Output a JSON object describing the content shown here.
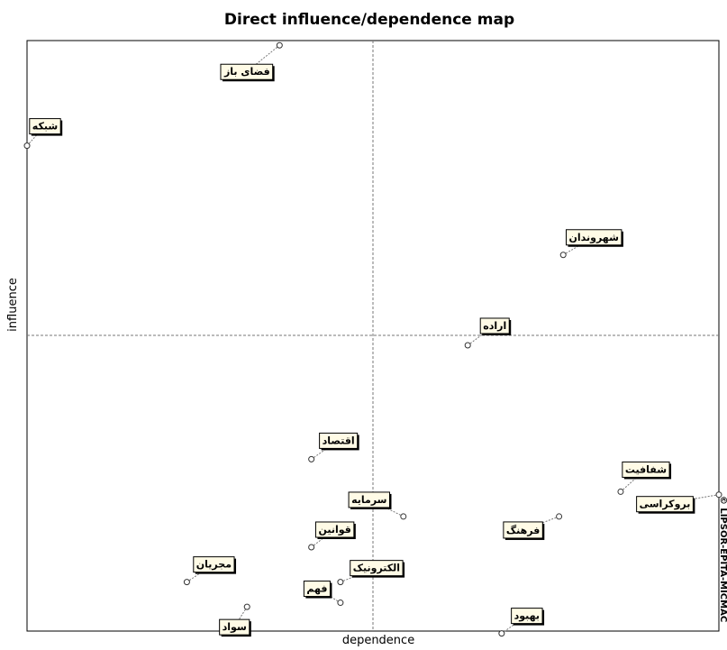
{
  "chart_data": {
    "type": "scatter",
    "title": "Direct influence/dependence map",
    "xlabel": "dependence",
    "ylabel": "influence",
    "watermark": "© LIPSOR-EPITA-MICMAC",
    "grid": false,
    "quadrant_lines": "dashed",
    "colors": {
      "axis": "#000000",
      "divider": "#777777",
      "label_fill": "#fffbe6",
      "label_shadow": "#000000",
      "point": "#ffffff",
      "leader": "#777777"
    },
    "points": [
      {
        "label": "فضای باز",
        "x": 0.365,
        "y": 0.992
      },
      {
        "label": "شبکه",
        "x": 0.0,
        "y": 0.822
      },
      {
        "label": "شهروندان",
        "x": 0.775,
        "y": 0.637
      },
      {
        "label": "اراده",
        "x": 0.637,
        "y": 0.484
      },
      {
        "label": "اقتصاد",
        "x": 0.411,
        "y": 0.291
      },
      {
        "label": "شفافیت",
        "x": 0.858,
        "y": 0.236
      },
      {
        "label": "بروکراسی",
        "x": 1.0,
        "y": 0.231
      },
      {
        "label": "سرمایه",
        "x": 0.544,
        "y": 0.194
      },
      {
        "label": "فرهنگ",
        "x": 0.769,
        "y": 0.194
      },
      {
        "label": "قوانین",
        "x": 0.411,
        "y": 0.142
      },
      {
        "label": "مجریان",
        "x": 0.231,
        "y": 0.083
      },
      {
        "label": "الکترونیک",
        "x": 0.453,
        "y": 0.083
      },
      {
        "label": "فهم",
        "x": 0.453,
        "y": 0.048
      },
      {
        "label": "سواد",
        "x": 0.318,
        "y": 0.041
      },
      {
        "label": "بهبود",
        "x": 0.686,
        "y": -0.004
      }
    ]
  }
}
